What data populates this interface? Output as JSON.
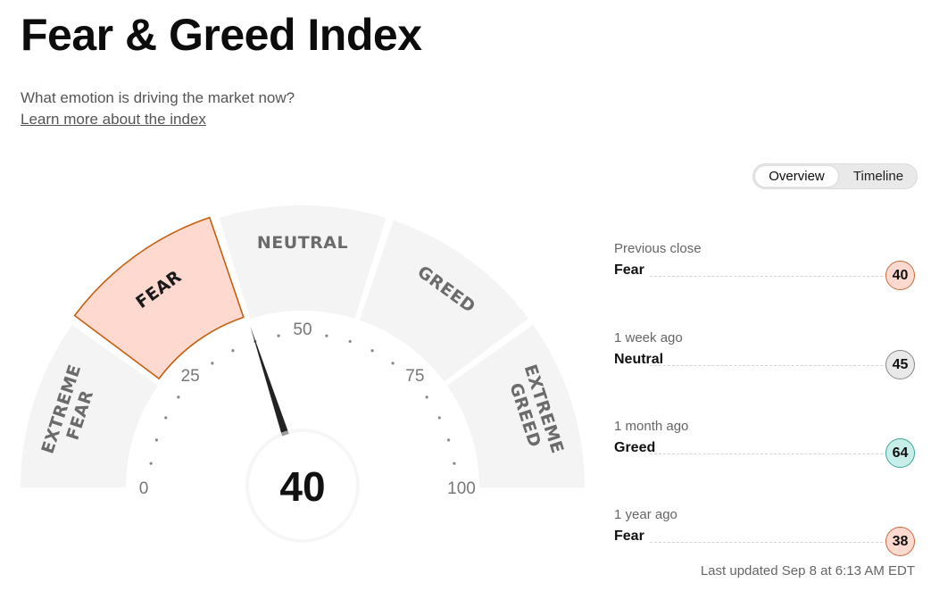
{
  "header": {
    "title": "Fear & Greed Index",
    "subtitle": "What emotion is driving the market now?",
    "learn_more": "Learn more about the index"
  },
  "tabs": [
    {
      "label": "Overview",
      "active": true
    },
    {
      "label": "Timeline",
      "active": false
    }
  ],
  "gauge": {
    "value": "40",
    "segments": [
      {
        "lines": [
          "EXTREME",
          "FEAR"
        ],
        "active": false
      },
      {
        "lines": [
          "FEAR"
        ],
        "active": true
      },
      {
        "lines": [
          "NEUTRAL"
        ],
        "active": false
      },
      {
        "lines": [
          "GREED"
        ],
        "active": false
      },
      {
        "lines": [
          "EXTREME",
          "GREED"
        ],
        "active": false
      }
    ],
    "ticks": [
      "0",
      "25",
      "50",
      "75",
      "100"
    ],
    "colors": {
      "segment_fill": "#f4f4f4",
      "active_fill": "#fdd9d0",
      "active_border": "#c4600f",
      "needle": "#222222"
    }
  },
  "history": [
    {
      "period": "Previous close",
      "rating": "Fear",
      "value": "40",
      "color": "#fdd9d0",
      "border": "#c86a3a"
    },
    {
      "period": "1 week ago",
      "rating": "Neutral",
      "value": "45",
      "color": "#e9e9e9",
      "border": "#888888"
    },
    {
      "period": "1 month ago",
      "rating": "Greed",
      "value": "64",
      "color": "#c7eee8",
      "border": "#3aa597"
    },
    {
      "period": "1 year ago",
      "rating": "Fear",
      "value": "38",
      "color": "#fdd9d0",
      "border": "#c86a3a"
    }
  ],
  "last_updated": "Last updated Sep 8 at 6:13 AM EDT"
}
